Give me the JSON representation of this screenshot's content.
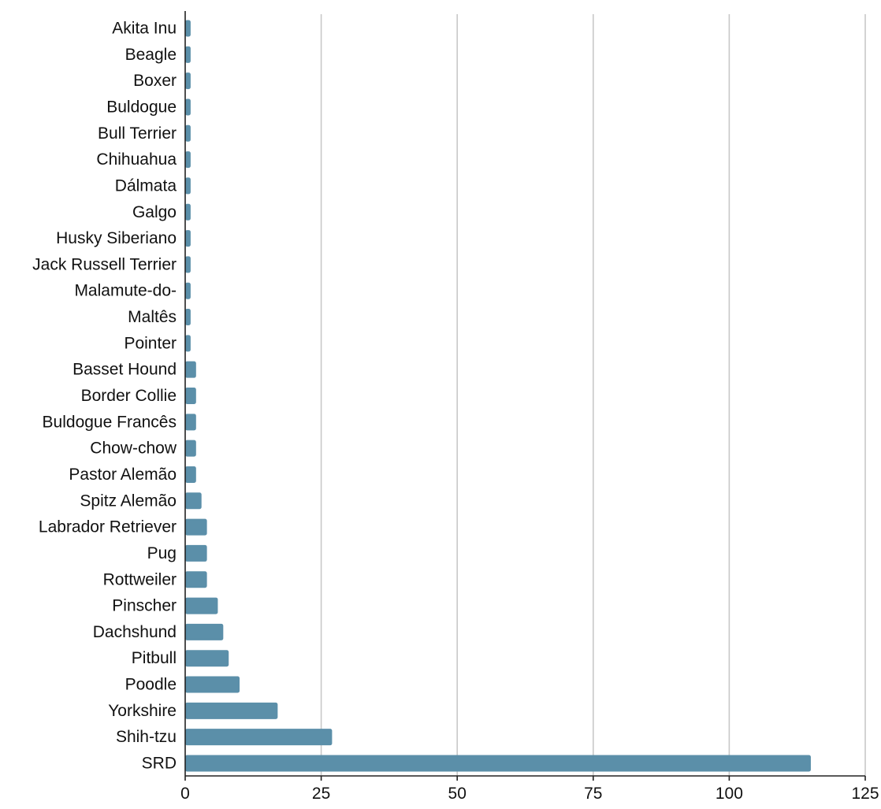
{
  "chart_data": {
    "type": "bar",
    "orientation": "horizontal",
    "title": "",
    "xlabel": "",
    "ylabel": "",
    "categories": [
      "Akita Inu",
      "Beagle",
      "Boxer",
      "Buldogue",
      "Bull Terrier",
      "Chihuahua",
      "Dálmata",
      "Galgo",
      "Husky Siberiano",
      "Jack Russell Terrier",
      "Malamute-do-",
      "Maltês",
      "Pointer",
      "Basset Hound",
      "Border Collie",
      "Buldogue Francês",
      "Chow-chow",
      "Pastor Alemão",
      "Spitz Alemão",
      "Labrador Retriever",
      "Pug",
      "Rottweiler",
      "Pinscher",
      "Dachshund",
      "Pitbull",
      "Poodle",
      "Yorkshire",
      "Shih-tzu",
      "SRD"
    ],
    "values": [
      1,
      1,
      1,
      1,
      1,
      1,
      1,
      1,
      1,
      1,
      1,
      1,
      1,
      2,
      2,
      2,
      2,
      2,
      3,
      4,
      4,
      4,
      6,
      7,
      8,
      10,
      17,
      27,
      115
    ],
    "xlim": [
      0,
      125
    ],
    "xticks": [
      0,
      25,
      50,
      75,
      100,
      125
    ],
    "grid": "vertical",
    "legend": "none",
    "bar_color": "#5b8fa9",
    "grid_color": "#c8c8c8",
    "axis_color": "#222222"
  }
}
